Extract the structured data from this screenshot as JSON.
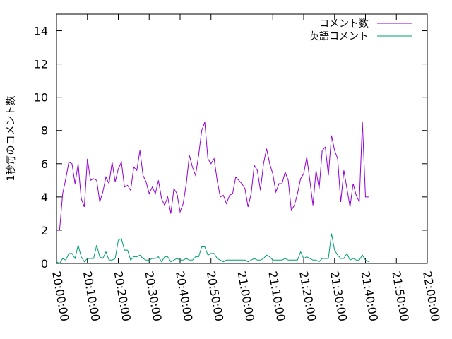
{
  "chart_data": {
    "type": "line",
    "title": "",
    "xlabel": "",
    "ylabel": "1秒毎のコメント数",
    "xlim": [
      "20:00:00",
      "22:00:00"
    ],
    "ylim": [
      0,
      15
    ],
    "yticks": [
      0,
      2,
      4,
      6,
      8,
      10,
      12,
      14
    ],
    "xticks": [
      "20:00:00",
      "20:10:00",
      "20:20:00",
      "20:30:00",
      "20:40:00",
      "20:50:00",
      "21:00:00",
      "21:10:00",
      "21:20:00",
      "21:30:00",
      "21:40:00",
      "21:50:00",
      "22:00:00"
    ],
    "grid": false,
    "legend_position": "top-right",
    "sample_interval_minutes": 1,
    "series": [
      {
        "name": "コメント数",
        "color": "#9400d3",
        "values": [
          2.0,
          2.0,
          4.2,
          5.1,
          6.1,
          6.0,
          4.8,
          6.0,
          3.9,
          3.4,
          6.3,
          5.0,
          5.1,
          5.0,
          3.7,
          4.3,
          5.2,
          4.8,
          6.1,
          4.9,
          5.7,
          6.1,
          4.6,
          4.7,
          4.4,
          5.8,
          5.6,
          6.8,
          5.3,
          4.9,
          4.2,
          4.6,
          4.2,
          5.0,
          3.9,
          3.5,
          4.0,
          3.0,
          4.5,
          4.2,
          3.1,
          3.6,
          4.8,
          6.5,
          5.8,
          5.3,
          6.5,
          8.0,
          8.5,
          6.3,
          6.0,
          6.3,
          5.0,
          4.0,
          4.1,
          3.6,
          4.1,
          4.2,
          5.2,
          5.0,
          4.8,
          4.5,
          3.4,
          4.2,
          5.9,
          5.6,
          4.4,
          6.0,
          6.9,
          6.0,
          5.4,
          4.3,
          4.8,
          4.8,
          5.5,
          5.0,
          3.2,
          3.5,
          4.2,
          5.1,
          5.4,
          6.4,
          5.0,
          3.5,
          5.6,
          4.5,
          6.8,
          7.0,
          5.3,
          7.7,
          6.8,
          6.3,
          3.7,
          5.6,
          4.5,
          3.4,
          4.8,
          4.1,
          3.7,
          8.5,
          4.0,
          4.0
        ]
      },
      {
        "name": "英語コメント",
        "color": "#009e73",
        "values": [
          0.1,
          0.0,
          0.3,
          0.2,
          0.6,
          0.6,
          0.3,
          1.1,
          0.4,
          0.1,
          0.3,
          0.3,
          0.3,
          1.1,
          0.4,
          0.3,
          0.7,
          0.2,
          0.2,
          0.3,
          1.4,
          1.5,
          0.8,
          0.8,
          0.2,
          0.4,
          0.4,
          0.5,
          0.3,
          0.2,
          0.2,
          0.3,
          0.3,
          0.4,
          0.1,
          0.4,
          0.4,
          0.1,
          0.2,
          0.3,
          0.2,
          0.2,
          0.3,
          0.2,
          0.2,
          0.4,
          0.4,
          1.0,
          1.0,
          0.5,
          0.6,
          0.6,
          0.3,
          0.2,
          0.1,
          0.2,
          0.2,
          0.2,
          0.2,
          0.2,
          0.2,
          0.2,
          0.1,
          0.2,
          0.3,
          0.2,
          0.2,
          0.3,
          0.5,
          0.4,
          0.2,
          0.2,
          0.2,
          0.2,
          0.3,
          0.2,
          0.2,
          0.2,
          0.2,
          0.7,
          0.3,
          0.4,
          0.3,
          0.2,
          0.2,
          0.1,
          0.3,
          0.3,
          0.3,
          1.8,
          0.8,
          0.5,
          0.3,
          0.3,
          0.6,
          0.2,
          0.3,
          0.2,
          0.2,
          0.5,
          0.2,
          0.1
        ]
      }
    ]
  }
}
